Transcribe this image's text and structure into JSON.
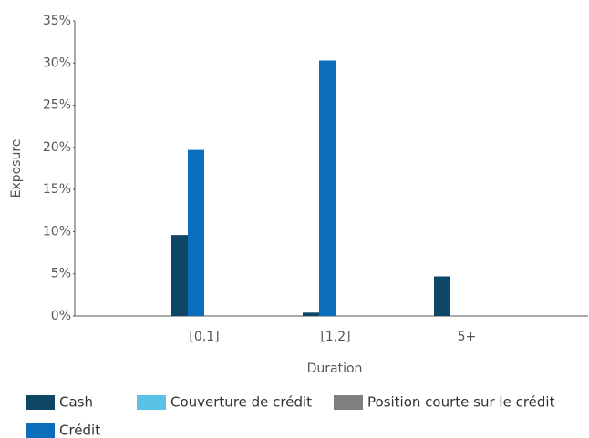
{
  "chart_data": {
    "type": "bar",
    "categories": [
      "[0,1]",
      "[1,2]",
      "5+"
    ],
    "series": [
      {
        "name": "Cash",
        "color": "#0e4666",
        "values": [
          9.6,
          0.4,
          4.7
        ]
      },
      {
        "name": "Couverture de crédit",
        "color": "#5bc2e7",
        "values": [
          0,
          0,
          0
        ]
      },
      {
        "name": "Position courte sur le crédit",
        "color": "#7f7f7f",
        "values": [
          0,
          0,
          0
        ]
      },
      {
        "name": "Crédit",
        "color": "#0a6ebd",
        "values": [
          19.7,
          30.3,
          0
        ]
      }
    ],
    "xlabel": "Duration",
    "ylabel": "Exposure",
    "ylim": [
      0,
      35
    ],
    "yticks": [
      {
        "value": 0,
        "label": "0%"
      },
      {
        "value": 5,
        "label": "5%"
      },
      {
        "value": 10,
        "label": "10%"
      },
      {
        "value": 15,
        "label": "15%"
      },
      {
        "value": 20,
        "label": "20%"
      },
      {
        "value": 25,
        "label": "25%"
      },
      {
        "value": 30,
        "label": "30%"
      },
      {
        "value": 35,
        "label": "35%"
      }
    ],
    "legend": "bottom"
  }
}
